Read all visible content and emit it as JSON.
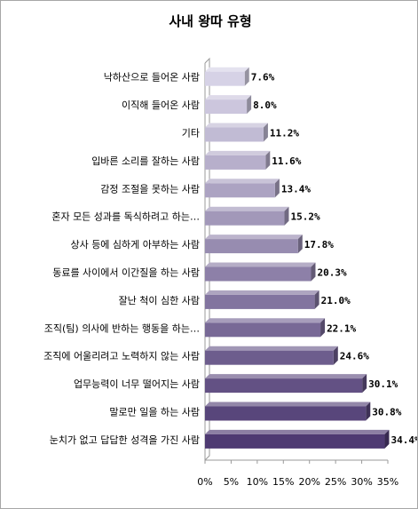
{
  "chart_data": {
    "type": "bar",
    "orientation": "horizontal",
    "title": "사내 왕따 유형",
    "categories": [
      "낙하산으로 들어온 사람",
      "이직해 들어온 사람",
      "기타",
      "입바른 소리를 잘하는 사람",
      "감정 조절을 못하는 사람",
      "혼자 모든 성과를 독식하려고 하는…",
      "상사 등에 심하게 아부하는 사람",
      "동료를 사이에서 이간질을 하는 사람",
      "잘난 척이 심한 사람",
      "조직(팀) 의사에 반하는 행동을 하는…",
      "조직에 어울리려고 노력하지 않는 사람",
      "업무능력이 너무 떨어지는 사람",
      "말로만 일을 하는 사람",
      "눈치가 없고 답답한 성격을 가진 사람"
    ],
    "values": [
      7.6,
      8.0,
      11.2,
      11.6,
      13.4,
      15.2,
      17.8,
      20.3,
      21.0,
      22.1,
      24.6,
      30.1,
      30.8,
      34.4
    ],
    "value_labels": [
      "7.6%",
      "8.0%",
      "11.2%",
      "11.6%",
      "13.4%",
      "15.2%",
      "17.8%",
      "20.3%",
      "21.0%",
      "22.1%",
      "24.6%",
      "30.1%",
      "30.8%",
      "34.4%"
    ],
    "x_ticks": [
      "0%",
      "5%",
      "10%",
      "15%",
      "20%",
      "25%",
      "30%",
      "35%"
    ],
    "xlim": [
      0,
      35
    ],
    "xlabel": "",
    "ylabel": "",
    "grid": false,
    "legend": "none",
    "bar_color_light": "#d6d2e6",
    "bar_color_dark": "#4e3a72"
  }
}
